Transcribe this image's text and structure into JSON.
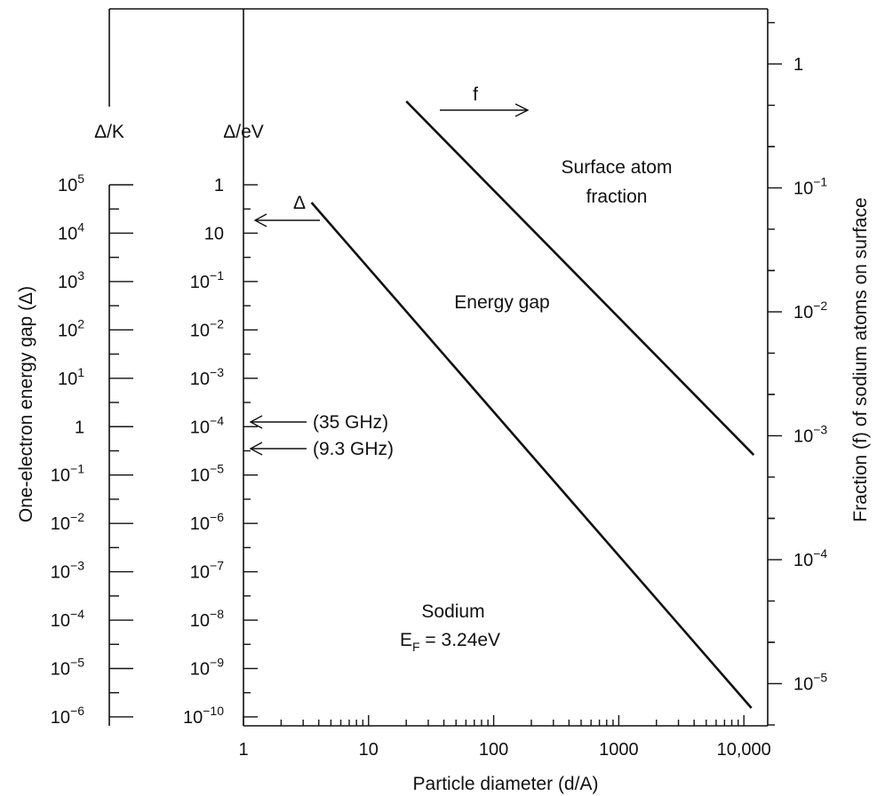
{
  "chart_data": {
    "type": "line",
    "xscale": "log",
    "xlim": [
      1,
      15000
    ],
    "x_ticks": [
      1,
      10,
      100,
      1000,
      10000
    ],
    "x_tick_labels": [
      "1",
      "10",
      "100",
      "1000",
      "10,000"
    ],
    "xlabel": "Particle diameter (d/A)",
    "ylabel_left": "One-electron energy gap (Δ)",
    "ylabel_right": "Fraction (f) of sodium atoms on surface",
    "left_axis_K": {
      "header": "Δ/K",
      "exponents": [
        5,
        4,
        3,
        2,
        1,
        0,
        -1,
        -2,
        -3,
        -4,
        -5,
        -6
      ],
      "tick_labels": [
        {
          "base": "10",
          "exp": "5"
        },
        {
          "base": "10",
          "exp": "4"
        },
        {
          "base": "10",
          "exp": "3"
        },
        {
          "base": "10",
          "exp": "2"
        },
        {
          "base": "10",
          "exp": "1"
        },
        {
          "base": "1",
          "exp": ""
        },
        {
          "base": "10",
          "exp": "−1"
        },
        {
          "base": "10",
          "exp": "−2"
        },
        {
          "base": "10",
          "exp": "−3"
        },
        {
          "base": "10",
          "exp": "−4"
        },
        {
          "base": "10",
          "exp": "−5"
        },
        {
          "base": "10",
          "exp": "−6"
        }
      ]
    },
    "left_axis_eV": {
      "header": "Δ/eV",
      "exponents": [
        0,
        1,
        -1,
        -2,
        -3,
        -4,
        -5,
        -6,
        -7,
        -8,
        -9,
        -10
      ],
      "tick_labels": [
        {
          "base": "1",
          "exp": ""
        },
        {
          "base": "10",
          "exp": ""
        },
        {
          "base": "10",
          "exp": "−1"
        },
        {
          "base": "10",
          "exp": "−2"
        },
        {
          "base": "10",
          "exp": "−3"
        },
        {
          "base": "10",
          "exp": "−4"
        },
        {
          "base": "10",
          "exp": "−5"
        },
        {
          "base": "10",
          "exp": "−6"
        },
        {
          "base": "10",
          "exp": "−7"
        },
        {
          "base": "10",
          "exp": "−8"
        },
        {
          "base": "10",
          "exp": "−9"
        },
        {
          "base": "10",
          "exp": "−10"
        }
      ]
    },
    "right_axis_f": {
      "ylim": [
        2e-06,
        2.5
      ],
      "exponents": [
        0,
        -1,
        -2,
        -3,
        -4,
        -5
      ],
      "tick_labels": [
        {
          "base": "1",
          "exp": ""
        },
        {
          "base": "10",
          "exp": "−1"
        },
        {
          "base": "10",
          "exp": "−2"
        },
        {
          "base": "10",
          "exp": "−3"
        },
        {
          "base": "10",
          "exp": "−4"
        },
        {
          "base": "10",
          "exp": "−5"
        }
      ]
    },
    "series": [
      {
        "name": "Energy gap",
        "axis": "eV",
        "x": [
          3.5,
          11500
        ],
        "y": [
          1,
          1e-10
        ]
      },
      {
        "name": "Surface atom fraction",
        "axis": "f",
        "x": [
          20,
          12000
        ],
        "y": [
          0.5,
          0.0007
        ]
      }
    ],
    "annotations": {
      "delta_label": "Δ",
      "f_label": "f",
      "energy_gap": "Energy gap",
      "surface_line1": "Surface atom",
      "surface_line2": "fraction",
      "ghz35": "(35 GHz)",
      "ghz93": "(9.3 GHz)",
      "sodium": "Sodium",
      "fermi_prefix": "E",
      "fermi_sub": "F",
      "fermi_value": " = 3.24eV"
    },
    "grid": false
  }
}
